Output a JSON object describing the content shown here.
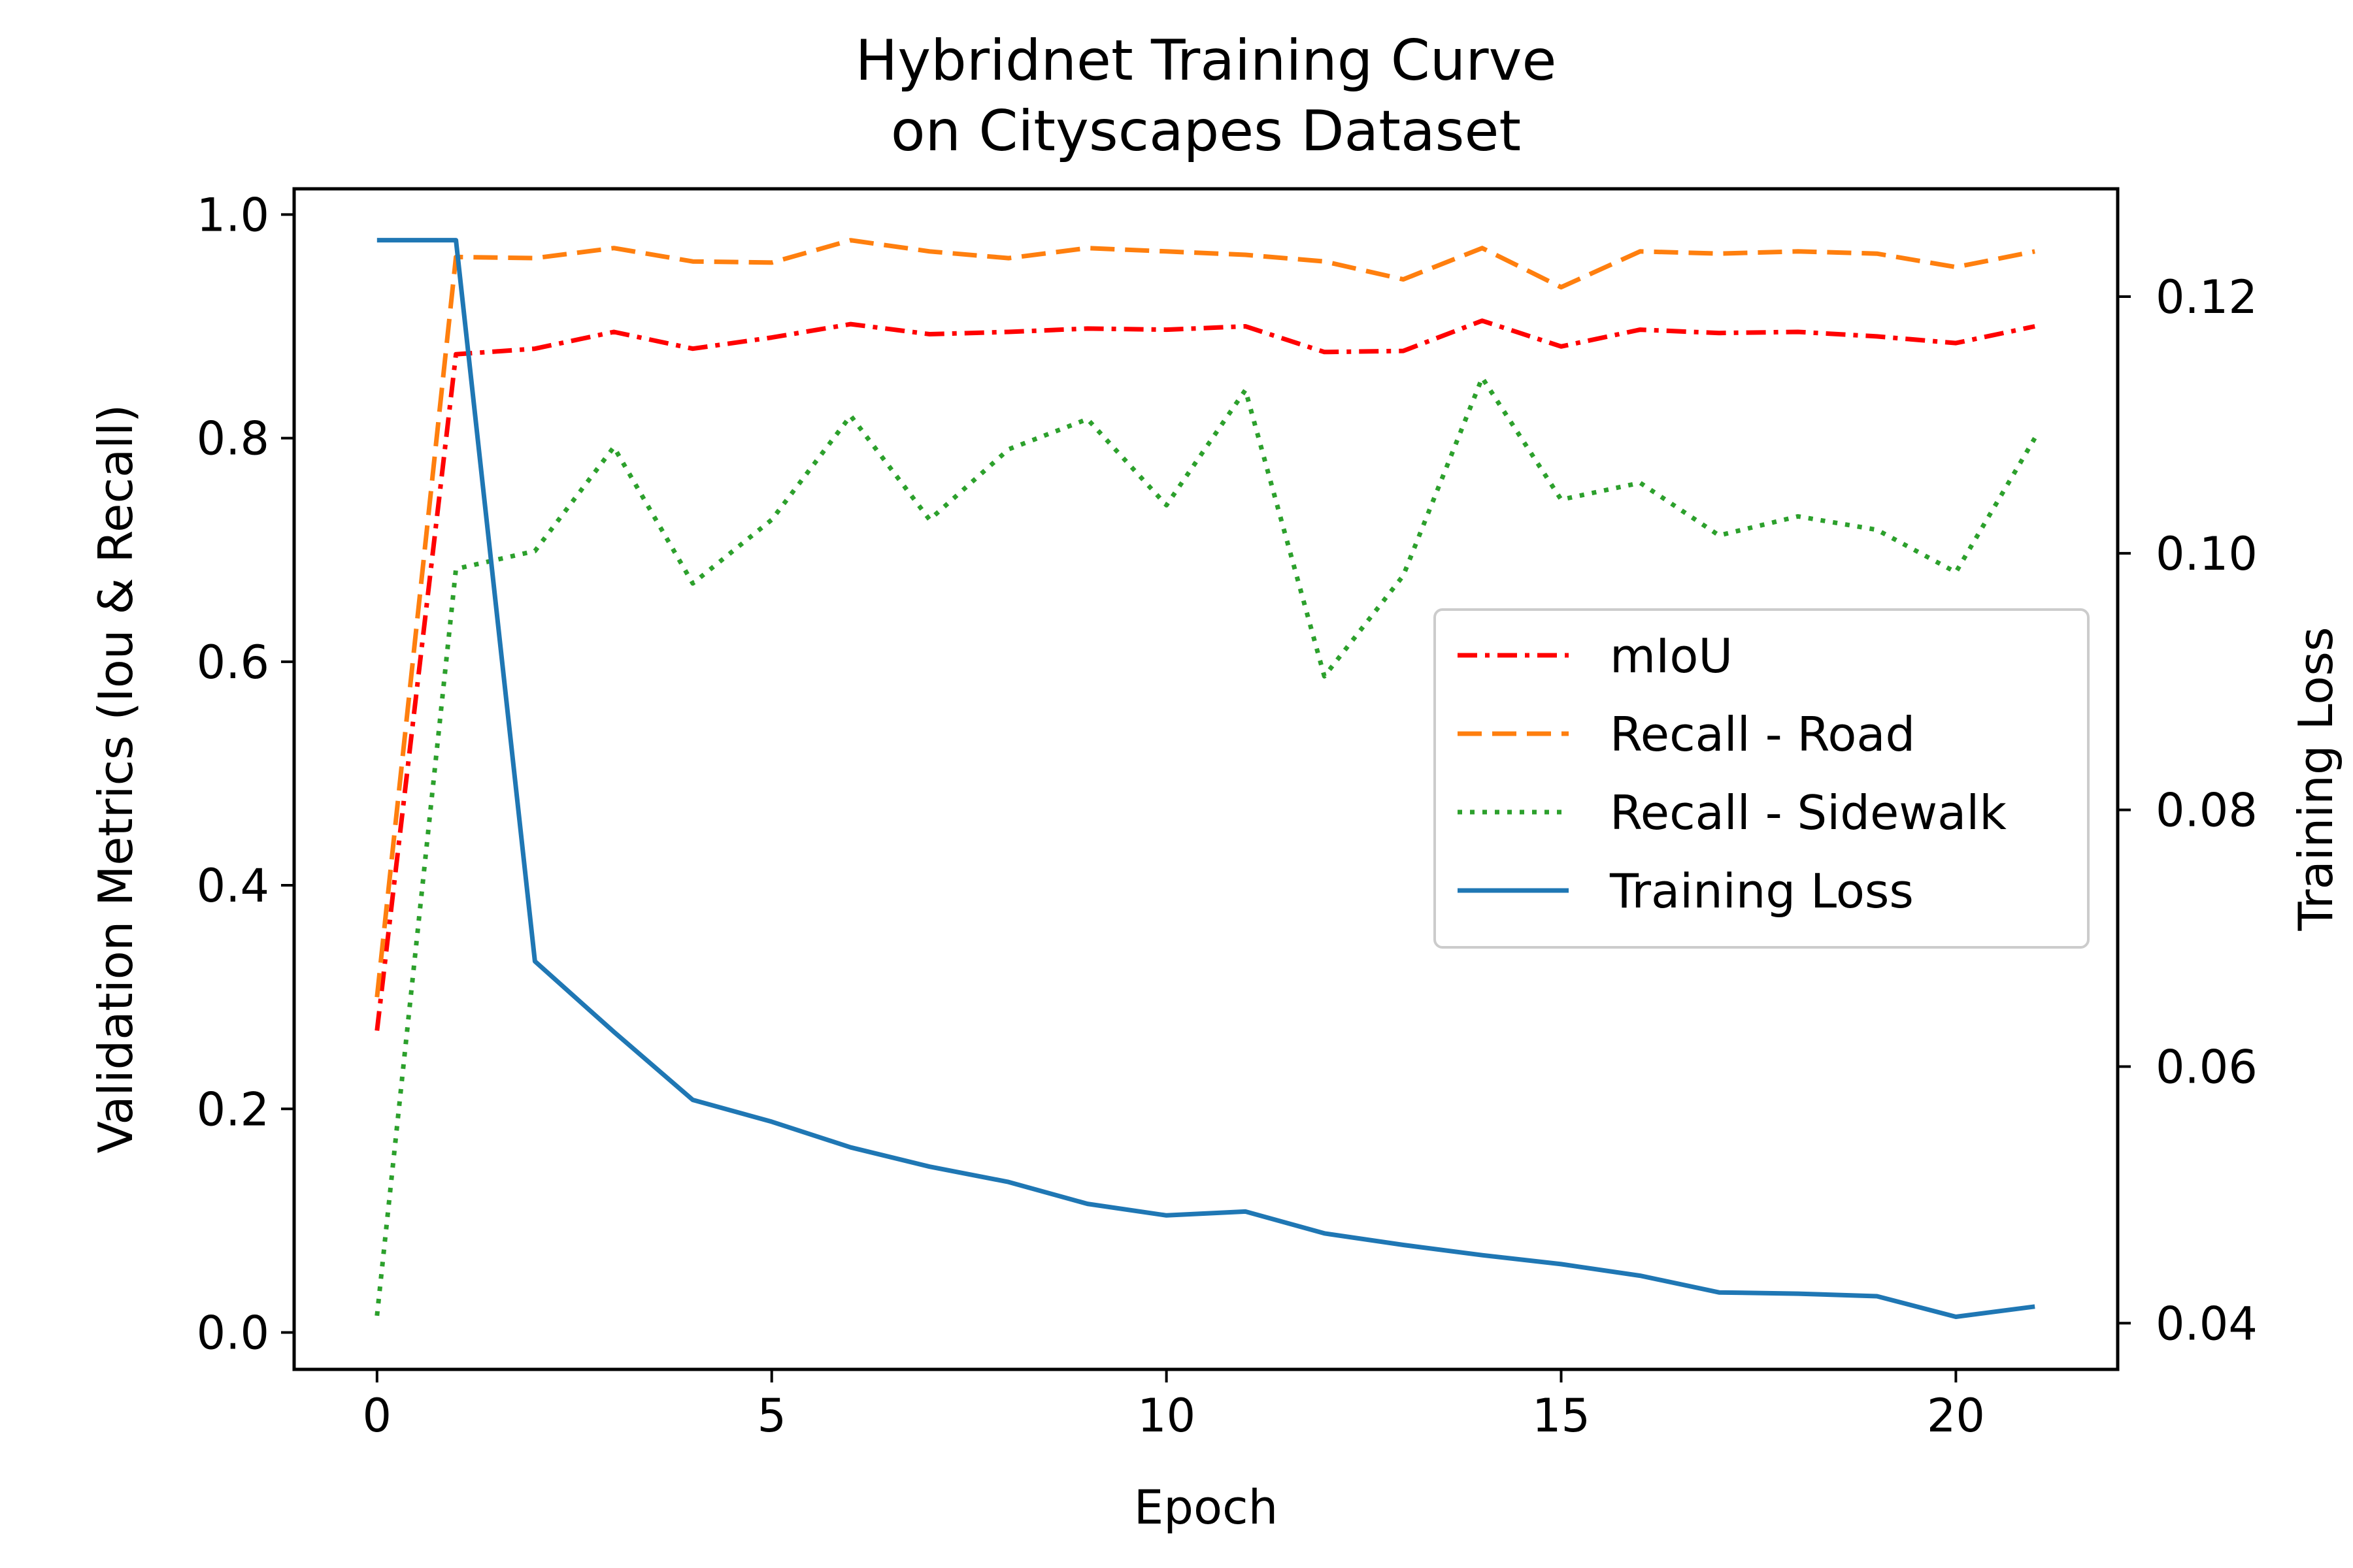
{
  "chart_data": {
    "type": "line",
    "title": [
      "Hybridnet Training Curve",
      "on Cityscapes Dataset"
    ],
    "xlabel": "Epoch",
    "ylabel_left": "Validation Metrics (Iou & Recall)",
    "ylabel_right": "Training Loss",
    "xlim": [
      -1.05,
      22.05
    ],
    "ylim_left": [
      -0.033,
      1.023
    ],
    "ylim_right": [
      0.0364,
      0.1284
    ],
    "x_ticks": [
      0,
      5,
      10,
      15,
      20
    ],
    "x_tick_labels": [
      "0",
      "5",
      "10",
      "15",
      "20"
    ],
    "y_left_ticks": [
      0.0,
      0.2,
      0.4,
      0.6,
      0.8,
      1.0
    ],
    "y_left_tick_labels": [
      "0.0",
      "0.2",
      "0.4",
      "0.6",
      "0.8",
      "1.0"
    ],
    "y_right_ticks": [
      0.04,
      0.06,
      0.08,
      0.1,
      0.12
    ],
    "y_right_tick_labels": [
      "0.04",
      "0.06",
      "0.08",
      "0.10",
      "0.12"
    ],
    "grid": false,
    "legend_position": "center-right",
    "x": [
      0,
      1,
      2,
      3,
      4,
      5,
      6,
      7,
      8,
      9,
      10,
      11,
      12,
      13,
      14,
      15,
      16,
      17,
      18,
      19,
      20,
      21
    ],
    "series": [
      {
        "name": "mIoU",
        "axis": "left",
        "color": "#ff0000",
        "style": "dashdot",
        "values": [
          0.27,
          0.875,
          0.88,
          0.895,
          0.88,
          0.89,
          0.902,
          0.893,
          0.895,
          0.898,
          0.897,
          0.9,
          0.877,
          0.878,
          0.905,
          0.882,
          0.897,
          0.894,
          0.895,
          0.891,
          0.885,
          0.9
        ]
      },
      {
        "name": "Recall - Road",
        "axis": "left",
        "color": "#ff7f0e",
        "style": "dashed",
        "values": [
          0.3,
          0.962,
          0.961,
          0.97,
          0.958,
          0.957,
          0.977,
          0.967,
          0.961,
          0.97,
          0.967,
          0.964,
          0.958,
          0.942,
          0.97,
          0.935,
          0.967,
          0.965,
          0.967,
          0.965,
          0.953,
          0.967
        ]
      },
      {
        "name": "Recall - Sidewalk",
        "axis": "left",
        "color": "#2ca02c",
        "style": "dotted",
        "values": [
          0.015,
          0.683,
          0.699,
          0.792,
          0.67,
          0.727,
          0.82,
          0.727,
          0.79,
          0.817,
          0.74,
          0.843,
          0.587,
          0.677,
          0.854,
          0.745,
          0.76,
          0.713,
          0.73,
          0.718,
          0.68,
          0.8
        ]
      },
      {
        "name": "Training Loss",
        "axis": "right",
        "color": "#1f77b4",
        "style": "solid",
        "values": [
          0.1244,
          0.1244,
          0.0682,
          0.0627,
          0.0574,
          0.0557,
          0.0537,
          0.0522,
          0.051,
          0.0493,
          0.0484,
          0.0487,
          0.047,
          0.0461,
          0.0453,
          0.0446,
          0.0437,
          0.0424,
          0.0423,
          0.0421,
          0.0405,
          0.0413
        ]
      }
    ]
  }
}
